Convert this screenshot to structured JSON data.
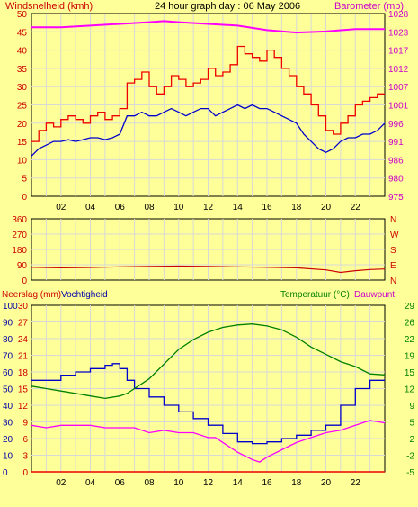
{
  "colors": {
    "background": "#ffff99",
    "frame": "#000000",
    "grid": "#d8d8d8",
    "wind_avg": "#0000cc",
    "wind_gust": "#ee0000",
    "barometer": "#ff00ff",
    "wind_dir": "#cc0000",
    "rain": "#ee0000",
    "humidity": "#0000cc",
    "temperature": "#008000",
    "dewpoint": "#ff00ff",
    "label_red": "#cc0000",
    "label_magenta": "#cc00cc",
    "label_green": "#008000"
  },
  "chart_data": [
    {
      "type": "line",
      "title": "24 hour graph day : 06 May 2006",
      "ylabel_left": "Windsnelheid (kmh)",
      "ylabel_right": "Barometer (mb)",
      "x_ticks": [
        "02",
        "04",
        "06",
        "08",
        "10",
        "12",
        "14",
        "16",
        "18",
        "20",
        "22"
      ],
      "x_tick_hours": [
        2,
        4,
        6,
        8,
        10,
        12,
        14,
        16,
        18,
        20,
        22
      ],
      "xlim": [
        0,
        24
      ],
      "y_left_ticks": [
        "50",
        "45",
        "40",
        "35",
        "30",
        "25",
        "20",
        "15",
        "10",
        "5",
        "0"
      ],
      "ylim_left": [
        0,
        50
      ],
      "y_right_ticks": [
        "1028",
        "1023",
        "1017",
        "1012",
        "1007",
        "1001",
        "996",
        "991",
        "986",
        "980",
        "975"
      ],
      "ylim_right": [
        975,
        1028
      ],
      "grid": true,
      "series": [
        {
          "key": "gust",
          "axis": "left",
          "step": true,
          "x": [
            0,
            0.5,
            1,
            1.5,
            2,
            2.5,
            3,
            3.5,
            4,
            4.5,
            5,
            5.5,
            6,
            6.5,
            7,
            7.5,
            8,
            8.5,
            9,
            9.5,
            10,
            10.5,
            11,
            11.5,
            12,
            12.5,
            13,
            13.5,
            14,
            14.5,
            15,
            15.5,
            16,
            16.5,
            17,
            17.5,
            18,
            18.5,
            19,
            19.5,
            20,
            20.5,
            21,
            21.5,
            22,
            22.5,
            23,
            23.5,
            24
          ],
          "y": [
            15,
            18,
            20,
            19,
            21,
            22,
            21,
            20,
            22,
            23,
            21,
            22,
            24,
            31,
            32,
            34,
            30,
            28,
            30,
            33,
            32,
            30,
            31,
            32,
            35,
            33,
            34,
            36,
            41,
            39,
            38,
            37,
            40,
            38,
            35,
            33,
            30,
            28,
            25,
            22,
            18,
            17,
            20,
            22,
            25,
            26,
            27,
            28,
            28
          ]
        },
        {
          "key": "avg",
          "axis": "left",
          "step": false,
          "x": [
            0,
            0.5,
            1,
            1.5,
            2,
            2.5,
            3,
            3.5,
            4,
            4.5,
            5,
            5.5,
            6,
            6.5,
            7,
            7.5,
            8,
            8.5,
            9,
            9.5,
            10,
            10.5,
            11,
            11.5,
            12,
            12.5,
            13,
            13.5,
            14,
            14.5,
            15,
            15.5,
            16,
            16.5,
            17,
            17.5,
            18,
            18.5,
            19,
            19.5,
            20,
            20.5,
            21,
            21.5,
            22,
            22.5,
            23,
            23.5,
            24
          ],
          "y": [
            11,
            13,
            14,
            15,
            15,
            15.5,
            15,
            15.5,
            16,
            16,
            15.5,
            16,
            17,
            22,
            22,
            23,
            22,
            22,
            23,
            24,
            23,
            22,
            23,
            24,
            24,
            22,
            23,
            24,
            25,
            24,
            25,
            24,
            24,
            23,
            22,
            21,
            20,
            17,
            15,
            13,
            12,
            13,
            15,
            16,
            16,
            17,
            17,
            18,
            20
          ]
        },
        {
          "key": "baro",
          "axis": "right",
          "step": false,
          "x": [
            0,
            2,
            4,
            6,
            8,
            9,
            10,
            12,
            14,
            16,
            18,
            20,
            22,
            24
          ],
          "y": [
            1024,
            1024,
            1024.5,
            1025,
            1025.5,
            1025.8,
            1025.5,
            1025,
            1024.5,
            1023.2,
            1022.5,
            1022.8,
            1023.5,
            1023.5
          ]
        }
      ]
    },
    {
      "type": "line",
      "ylabel_right": "",
      "x_tick_hours": [
        2,
        4,
        6,
        8,
        10,
        12,
        14,
        16,
        18,
        20,
        22
      ],
      "xlim": [
        0,
        24
      ],
      "y_left_ticks": [
        "360",
        "270",
        "180",
        "90",
        "0"
      ],
      "ylim": [
        0,
        360
      ],
      "compass_labels": [
        "N",
        "W",
        "S",
        "E",
        "N"
      ],
      "grid": true,
      "series": [
        {
          "key": "winddir",
          "x": [
            0,
            2,
            4,
            6,
            8,
            10,
            12,
            14,
            16,
            18,
            20,
            21,
            22,
            23,
            24
          ],
          "y": [
            75,
            72,
            74,
            78,
            80,
            82,
            80,
            78,
            75,
            72,
            60,
            45,
            55,
            62,
            65
          ]
        }
      ]
    },
    {
      "type": "line",
      "ylabel_left": "Neerslag (mm)",
      "ylabel_left2": "Vochtigheid",
      "ylabel_right": "Temperatuur (°C)",
      "ylabel_right2": "Dauwpunt",
      "x_ticks": [
        "02",
        "04",
        "06",
        "08",
        "10",
        "12",
        "14",
        "16",
        "18",
        "20",
        "22"
      ],
      "x_tick_hours": [
        2,
        4,
        6,
        8,
        10,
        12,
        14,
        16,
        18,
        20,
        22
      ],
      "xlim": [
        0,
        24
      ],
      "y_rain_ticks": [
        "30",
        "27",
        "24",
        "21",
        "18",
        "15",
        "12",
        "9",
        "6",
        "3",
        "0"
      ],
      "ylim_rain": [
        0,
        30
      ],
      "y_hum_ticks": [
        "100",
        "90",
        "80",
        "70",
        "60",
        "50",
        "40",
        "30",
        "20",
        "10",
        "0"
      ],
      "ylim_hum": [
        0,
        100
      ],
      "y_temp_ticks": [
        "29",
        "26",
        "22",
        "19",
        "15",
        "12",
        "9",
        "5",
        "2",
        "-2",
        "-5"
      ],
      "ylim_temp": [
        -5,
        29
      ],
      "grid": true,
      "series": [
        {
          "key": "rain",
          "axis": "rain",
          "x": [
            0,
            24
          ],
          "y": [
            0,
            0
          ]
        },
        {
          "key": "humidity",
          "axis": "hum",
          "step": true,
          "x": [
            0,
            1,
            2,
            3,
            4,
            5,
            5.5,
            6,
            6.5,
            7,
            8,
            9,
            10,
            11,
            12,
            13,
            14,
            15,
            16,
            17,
            18,
            19,
            20,
            21,
            22,
            23,
            24
          ],
          "y": [
            55,
            55,
            58,
            60,
            62,
            64,
            65,
            62,
            55,
            50,
            45,
            40,
            36,
            32,
            28,
            23,
            18,
            17,
            18,
            20,
            22,
            25,
            28,
            40,
            50,
            55,
            55
          ]
        },
        {
          "key": "temperature",
          "axis": "temp",
          "step": false,
          "x": [
            0,
            1,
            2,
            3,
            4,
            5,
            6,
            6.5,
            7,
            8,
            9,
            10,
            11,
            12,
            13,
            14,
            15,
            16,
            17,
            18,
            19,
            20,
            21,
            22,
            23,
            24
          ],
          "y": [
            12.5,
            12,
            11.5,
            11,
            10.5,
            10,
            10.5,
            11,
            12,
            14,
            17,
            20,
            22,
            23.5,
            24.5,
            25,
            25.2,
            24.8,
            24,
            22.5,
            20.5,
            19,
            17.5,
            16.5,
            15,
            14.8
          ]
        },
        {
          "key": "dewpoint",
          "axis": "temp",
          "step": false,
          "x": [
            0,
            1,
            2,
            3,
            4,
            5,
            6,
            7,
            8,
            9,
            10,
            11,
            12,
            12.5,
            13,
            14,
            15,
            15.5,
            16,
            17,
            18,
            19,
            20,
            21,
            22,
            23,
            24
          ],
          "y": [
            4.5,
            4,
            4.5,
            4.5,
            4.5,
            4,
            4,
            4,
            3,
            3.5,
            3,
            3,
            2,
            2,
            1,
            -1,
            -2.5,
            -3,
            -2,
            -0.5,
            1,
            2,
            3,
            3.5,
            4.5,
            5.5,
            5
          ]
        }
      ]
    }
  ]
}
